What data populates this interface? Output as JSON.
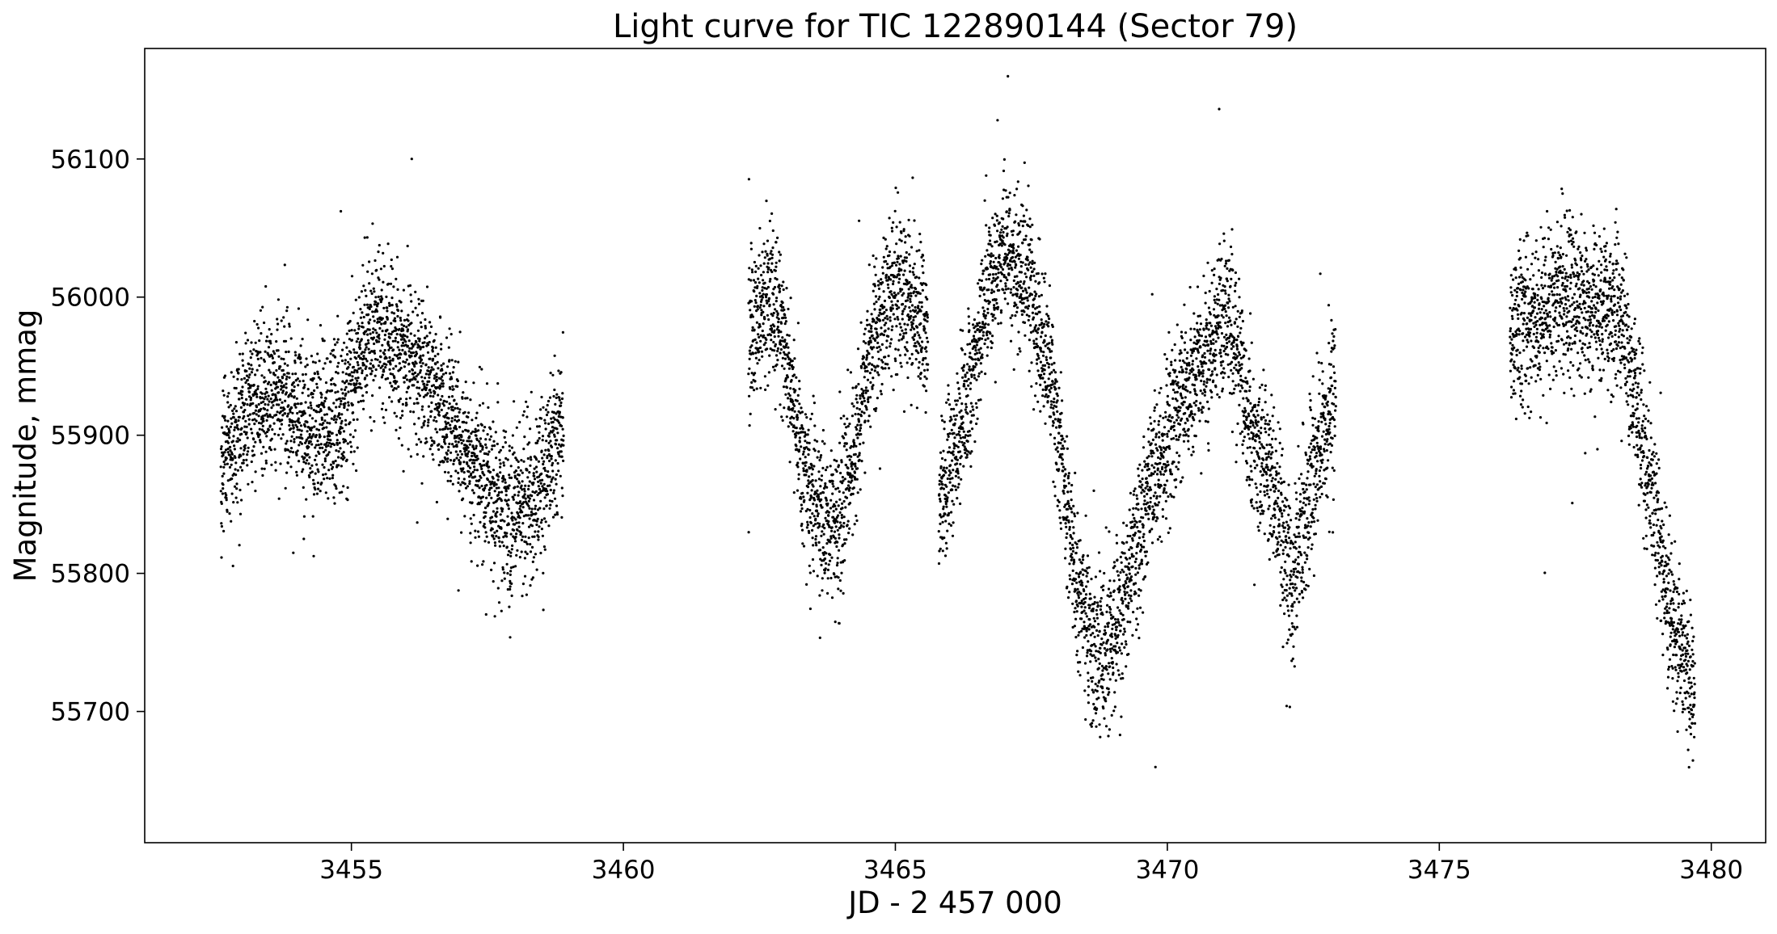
{
  "chart_data": {
    "type": "scatter",
    "title": "Light curve for TIC 122890144 (Sector 79)",
    "xlabel": "JD - 2 457 000",
    "ylabel": "Magnitude, mmag",
    "xlim": [
      3451.2,
      3481.0
    ],
    "ylim": [
      55605,
      56180
    ],
    "y_inverted": false,
    "grid": false,
    "legend": "none",
    "marker_color": "#000000",
    "x_ticks": [
      3455,
      3460,
      3465,
      3470,
      3475,
      3480
    ],
    "y_ticks": [
      55700,
      55800,
      55900,
      56000,
      56100
    ],
    "x_tick_labels": [
      "3455",
      "3460",
      "3465",
      "3470",
      "3475",
      "3480"
    ],
    "y_tick_labels": [
      "55700",
      "55800",
      "55900",
      "56000",
      "56100"
    ],
    "segments": [
      {
        "x_range": [
          3452.6,
          3458.9
        ],
        "trend": [
          [
            3452.6,
            55880
          ],
          [
            3453.2,
            55925
          ],
          [
            3453.8,
            55930
          ],
          [
            3454.3,
            55900
          ],
          [
            3454.8,
            55915
          ],
          [
            3455.3,
            55975
          ],
          [
            3455.9,
            55965
          ],
          [
            3456.5,
            55935
          ],
          [
            3457.2,
            55885
          ],
          [
            3457.9,
            55840
          ],
          [
            3458.4,
            55860
          ],
          [
            3458.9,
            55910
          ]
        ],
        "scatter": 28
      },
      {
        "x_range": [
          3462.3,
          3465.6
        ],
        "trend": [
          [
            3462.3,
            55975
          ],
          [
            3462.7,
            56005
          ],
          [
            3463.0,
            55960
          ],
          [
            3463.3,
            55880
          ],
          [
            3463.6,
            55845
          ],
          [
            3463.9,
            55830
          ],
          [
            3464.2,
            55880
          ],
          [
            3464.6,
            55970
          ],
          [
            3465.0,
            56010
          ],
          [
            3465.4,
            55990
          ],
          [
            3465.6,
            55975
          ]
        ],
        "scatter": 28
      },
      {
        "x_range": [
          3465.8,
          3473.1
        ],
        "trend": [
          [
            3465.8,
            55850
          ],
          [
            3466.2,
            55900
          ],
          [
            3466.6,
            55990
          ],
          [
            3467.0,
            56030
          ],
          [
            3467.5,
            56010
          ],
          [
            3467.9,
            55930
          ],
          [
            3468.3,
            55800
          ],
          [
            3468.7,
            55740
          ],
          [
            3469.1,
            55760
          ],
          [
            3469.6,
            55850
          ],
          [
            3470.1,
            55910
          ],
          [
            3470.6,
            55950
          ],
          [
            3471.1,
            55990
          ],
          [
            3471.6,
            55900
          ],
          [
            3472.0,
            55855
          ],
          [
            3472.3,
            55790
          ],
          [
            3472.6,
            55860
          ],
          [
            3473.1,
            55935
          ]
        ],
        "scatter": 28
      },
      {
        "x_range": [
          3476.3,
          3479.7
        ],
        "trend": [
          [
            3476.3,
            55975
          ],
          [
            3476.8,
            55990
          ],
          [
            3477.3,
            56000
          ],
          [
            3477.8,
            55990
          ],
          [
            3478.3,
            55990
          ],
          [
            3478.7,
            55910
          ],
          [
            3479.0,
            55830
          ],
          [
            3479.3,
            55760
          ],
          [
            3479.7,
            55720
          ]
        ],
        "scatter": 28
      }
    ]
  }
}
